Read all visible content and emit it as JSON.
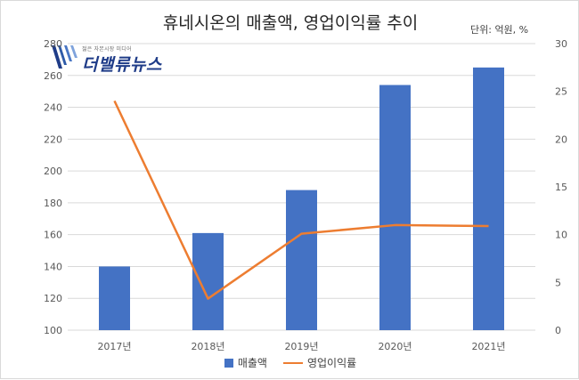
{
  "chart_data": {
    "type": "bar+line",
    "title": "휴네시온의 매출액, 영업이익률 추이",
    "unit_note": "단위: 억원, %",
    "categories": [
      "2017년",
      "2018년",
      "2019년",
      "2020년",
      "2021년"
    ],
    "series": [
      {
        "name": "매출액",
        "type": "bar",
        "axis": "left",
        "color": "#4472c4",
        "values": [
          140,
          161,
          188,
          254,
          265
        ]
      },
      {
        "name": "영업이익률",
        "type": "line",
        "axis": "right",
        "color": "#ed7d31",
        "values": [
          24.0,
          3.3,
          10.1,
          11.0,
          10.9
        ]
      }
    ],
    "y_left": {
      "min": 100,
      "max": 280,
      "step": 20,
      "ticks": [
        "100",
        "120",
        "140",
        "160",
        "180",
        "200",
        "220",
        "240",
        "260",
        "280"
      ]
    },
    "y_right": {
      "min": 0,
      "max": 30,
      "step": 5,
      "ticks": [
        "0",
        "5",
        "10",
        "15",
        "20",
        "25",
        "30"
      ]
    },
    "grid": true,
    "legend_position": "bottom"
  },
  "logo": {
    "tagline": "젊은 자본시장 미디어",
    "name": "더밸류뉴스"
  }
}
